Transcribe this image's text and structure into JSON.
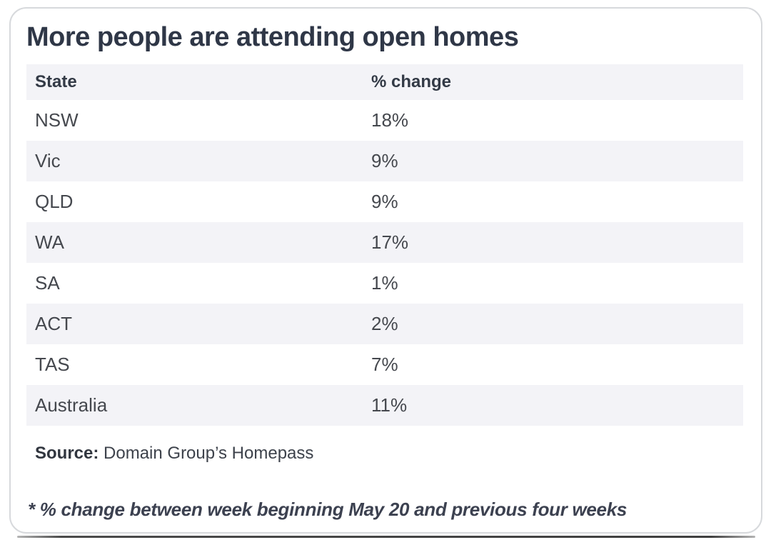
{
  "title": "More people are attending open homes",
  "table": {
    "columns": [
      "State",
      "% change"
    ],
    "rows": [
      {
        "state": "NSW",
        "change": "18%"
      },
      {
        "state": "Vic",
        "change": "9%"
      },
      {
        "state": "QLD",
        "change": "9%"
      },
      {
        "state": "WA",
        "change": "17%"
      },
      {
        "state": "SA",
        "change": "1%"
      },
      {
        "state": "ACT",
        "change": "2%"
      },
      {
        "state": "TAS",
        "change": "7%"
      },
      {
        "state": "Australia",
        "change": "11%"
      }
    ]
  },
  "source": {
    "label": "Source:",
    "text": "Domain Group’s Homepass"
  },
  "footnote": "* % change between week beginning May 20 and previous four weeks",
  "colors": {
    "title_text": "#2f3747",
    "body_text": "#45484e",
    "header_text": "#333a46",
    "row_stripe": "#f3f3f7",
    "card_border": "#d7d9dc",
    "card_background": "#ffffff",
    "divider": "#3f3f3f"
  },
  "chart_data": {
    "type": "table",
    "title": "More people are attending open homes",
    "columns": [
      "State",
      "% change"
    ],
    "categories": [
      "NSW",
      "Vic",
      "QLD",
      "WA",
      "SA",
      "ACT",
      "TAS",
      "Australia"
    ],
    "values": [
      18,
      9,
      9,
      17,
      1,
      2,
      7,
      11
    ],
    "unit": "%",
    "source": "Domain Group’s Homepass",
    "footnote": "* % change between week beginning May 20 and previous four weeks",
    "layout": "striped-table, header row shaded, no gridlines"
  }
}
